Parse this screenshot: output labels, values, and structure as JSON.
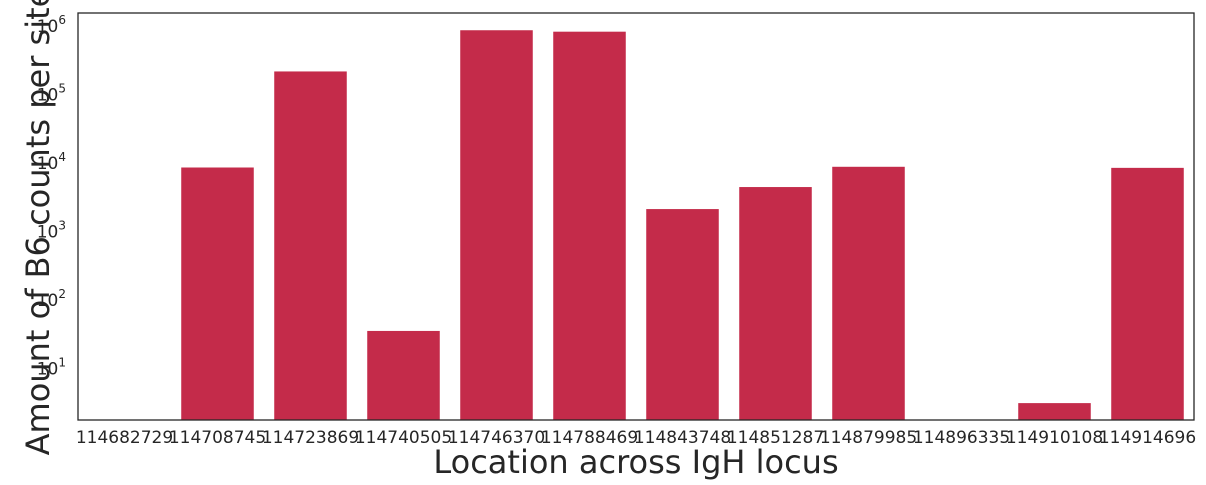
{
  "chart_data": {
    "type": "bar",
    "xlabel": "Location across IgH locus",
    "ylabel": "Amount of B6 counts per site",
    "yscale": "log",
    "ylim": [
      1.7,
      1500000
    ],
    "grid": false,
    "bar_color": "#c42b4a",
    "categories": [
      "114682729",
      "114708745",
      "114723869",
      "114740505",
      "114746370",
      "114788469",
      "114843748",
      "114851287",
      "114879985",
      "114896335",
      "114910108",
      "114914696"
    ],
    "values": [
      0,
      8300,
      210000,
      34,
      840000,
      800000,
      2050,
      4300,
      8500,
      0,
      3,
      8200
    ],
    "yticks": [
      {
        "base": "10",
        "exp": "1",
        "value": 10
      },
      {
        "base": "10",
        "exp": "2",
        "value": 100
      },
      {
        "base": "10",
        "exp": "3",
        "value": 1000
      },
      {
        "base": "10",
        "exp": "4",
        "value": 10000
      },
      {
        "base": "10",
        "exp": "5",
        "value": 100000
      },
      {
        "base": "10",
        "exp": "6",
        "value": 1000000
      }
    ]
  }
}
